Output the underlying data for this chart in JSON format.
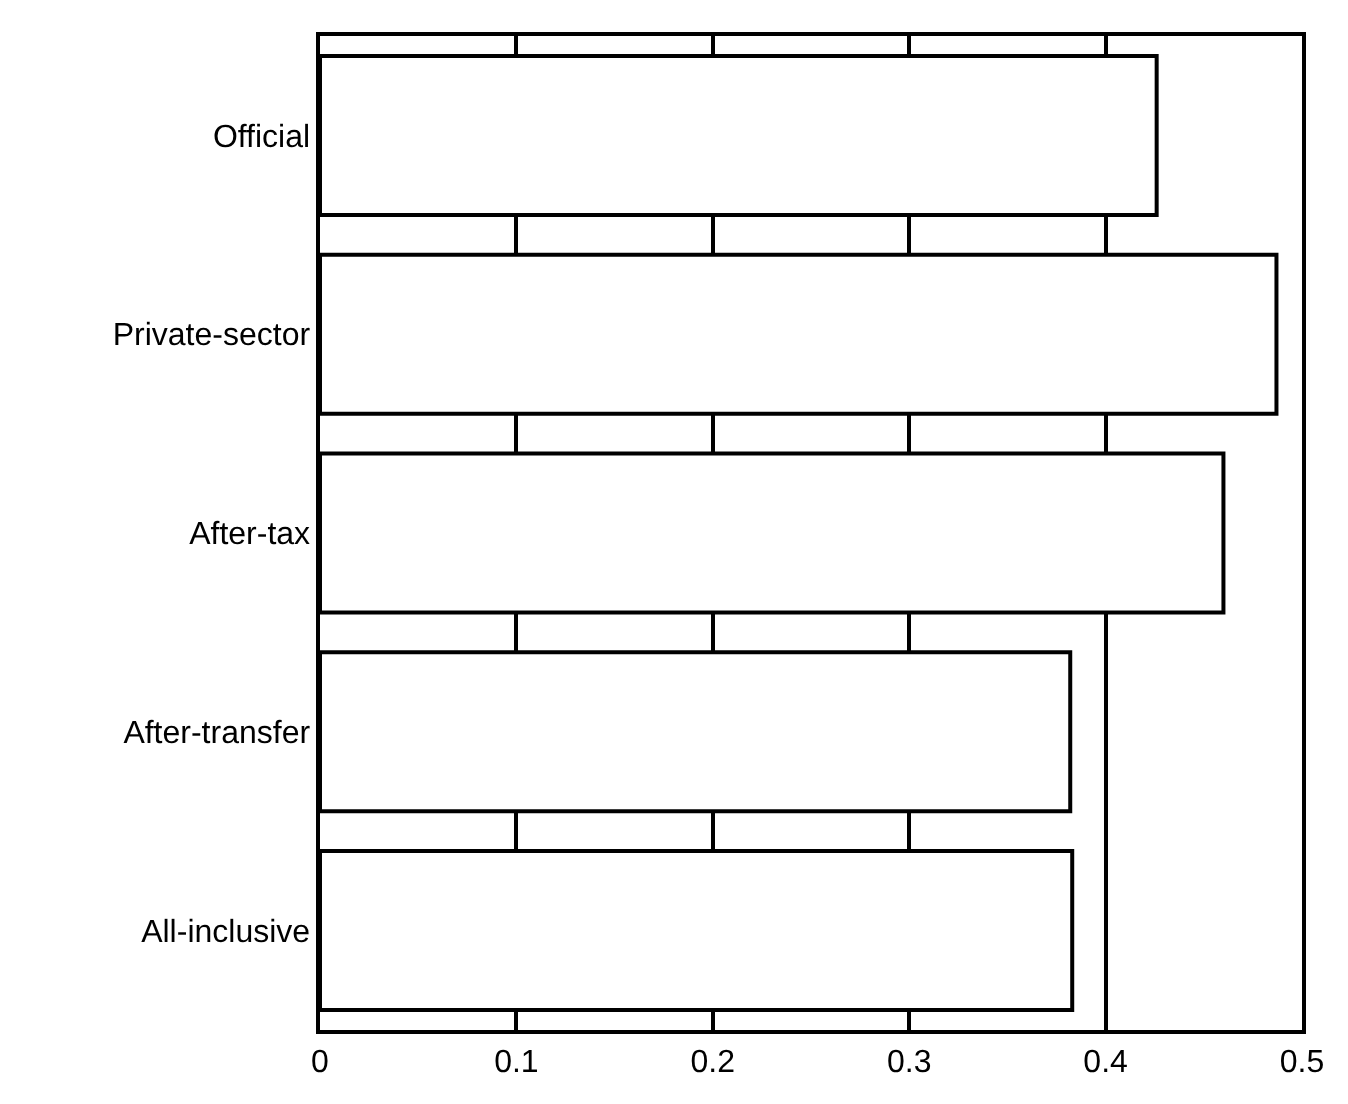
{
  "chart_data": {
    "type": "bar",
    "orientation": "horizontal",
    "categories": [
      "Official",
      "Private-sector",
      "After-tax",
      "After-transfer",
      "All-inclusive"
    ],
    "values": [
      0.426,
      0.487,
      0.46,
      0.382,
      0.383
    ],
    "color": "#ffffff",
    "xlim": [
      0,
      0.5
    ],
    "xticks": [
      0,
      0.1,
      0.2,
      0.3,
      0.4,
      0.5
    ],
    "grid": "x"
  }
}
